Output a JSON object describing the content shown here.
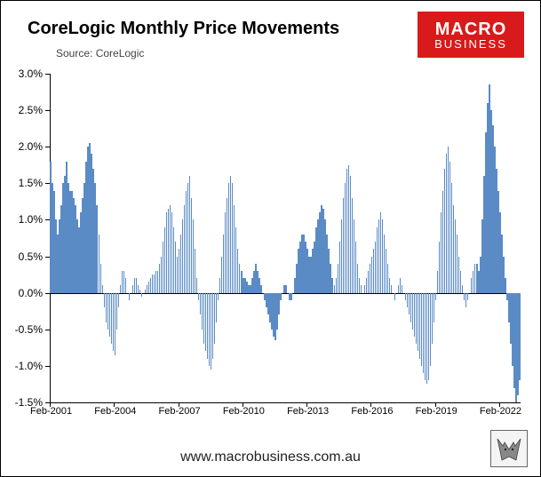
{
  "title": "CoreLogic Monthly Price Movements",
  "source": "Source: CoreLogic",
  "logo": {
    "line1": "MACRO",
    "line2": "BUSINESS",
    "bg": "#d91a1a"
  },
  "url": "www.macrobusiness.com.au",
  "chart": {
    "type": "bar",
    "bar_color": "#5b8bc5",
    "background_color": "#ffffff",
    "axis_color": "#000000",
    "ylim": [
      -1.5,
      3.0
    ],
    "ytick_step": 0.5,
    "ytick_labels": [
      "-1.5%",
      "-1.0%",
      "-0.5%",
      "0.0%",
      "0.5%",
      "1.0%",
      "1.5%",
      "2.0%",
      "2.5%",
      "3.0%"
    ],
    "xtick_labels": [
      "Feb-2001",
      "Feb-2004",
      "Feb-2007",
      "Feb-2010",
      "Feb-2013",
      "Feb-2016",
      "Feb-2019",
      "Feb-2022"
    ],
    "xtick_indices": [
      0,
      36,
      72,
      108,
      144,
      180,
      216,
      252
    ],
    "title_fontsize": 20,
    "label_fontsize": 12,
    "values": [
      1.8,
      1.5,
      1.4,
      1.0,
      0.8,
      1.0,
      1.2,
      1.5,
      1.6,
      1.8,
      1.5,
      1.4,
      1.4,
      1.3,
      1.2,
      1.0,
      0.9,
      1.1,
      1.3,
      1.5,
      1.8,
      2.0,
      2.05,
      1.9,
      1.7,
      1.5,
      1.2,
      0.8,
      0.4,
      0.1,
      -0.2,
      -0.4,
      -0.5,
      -0.6,
      -0.7,
      -0.8,
      -0.85,
      -0.5,
      -0.2,
      0.1,
      0.3,
      0.3,
      0.2,
      0.0,
      -0.1,
      0.0,
      0.1,
      0.2,
      0.2,
      0.1,
      0.05,
      -0.05,
      0.0,
      0.05,
      0.1,
      0.15,
      0.2,
      0.25,
      0.25,
      0.3,
      0.3,
      0.4,
      0.5,
      0.7,
      0.9,
      1.1,
      1.15,
      1.2,
      1.1,
      0.9,
      0.7,
      0.5,
      0.6,
      0.8,
      1.0,
      1.2,
      1.4,
      1.5,
      1.6,
      1.3,
      1.0,
      0.6,
      0.2,
      -0.1,
      -0.3,
      -0.5,
      -0.7,
      -0.8,
      -0.9,
      -1.0,
      -1.05,
      -0.9,
      -0.7,
      -0.4,
      -0.1,
      0.2,
      0.5,
      0.8,
      1.1,
      1.3,
      1.5,
      1.6,
      1.5,
      1.2,
      0.9,
      0.6,
      0.4,
      0.3,
      0.2,
      0.2,
      0.15,
      0.1,
      0.1,
      0.2,
      0.3,
      0.4,
      0.3,
      0.2,
      0.1,
      0.0,
      -0.1,
      -0.2,
      -0.3,
      -0.4,
      -0.5,
      -0.6,
      -0.65,
      -0.5,
      -0.3,
      -0.1,
      0.0,
      0.1,
      0.1,
      0.0,
      -0.1,
      -0.1,
      0.0,
      0.2,
      0.4,
      0.6,
      0.7,
      0.8,
      0.8,
      0.7,
      0.6,
      0.5,
      0.5,
      0.6,
      0.7,
      0.9,
      1.0,
      1.1,
      1.2,
      1.15,
      1.0,
      0.8,
      0.6,
      0.4,
      0.2,
      0.1,
      0.2,
      0.4,
      0.7,
      1.0,
      1.3,
      1.5,
      1.7,
      1.75,
      1.6,
      1.3,
      1.0,
      0.7,
      0.4,
      0.2,
      0.1,
      0.0,
      0.1,
      0.2,
      0.3,
      0.4,
      0.5,
      0.6,
      0.7,
      0.9,
      1.0,
      1.1,
      1.0,
      0.8,
      0.6,
      0.4,
      0.2,
      0.1,
      0.0,
      -0.1,
      0.0,
      0.1,
      0.2,
      0.1,
      0.0,
      -0.1,
      -0.2,
      -0.3,
      -0.4,
      -0.5,
      -0.6,
      -0.7,
      -0.8,
      -0.9,
      -1.0,
      -1.1,
      -1.2,
      -1.25,
      -1.2,
      -1.0,
      -0.7,
      -0.4,
      -0.1,
      0.3,
      0.7,
      1.1,
      1.4,
      1.7,
      1.9,
      2.0,
      1.8,
      1.5,
      1.2,
      1.0,
      0.8,
      0.5,
      0.3,
      0.1,
      -0.1,
      -0.2,
      -0.1,
      0.0,
      0.2,
      0.3,
      0.4,
      0.4,
      0.3,
      0.5,
      1.0,
      1.6,
      2.2,
      2.6,
      2.85,
      2.5,
      2.3,
      2.0,
      1.7,
      1.4,
      1.1,
      0.8,
      0.5,
      0.2,
      -0.1,
      -0.4,
      -0.7,
      -1.0,
      -1.3,
      -1.5,
      -1.4,
      -1.2
    ]
  }
}
